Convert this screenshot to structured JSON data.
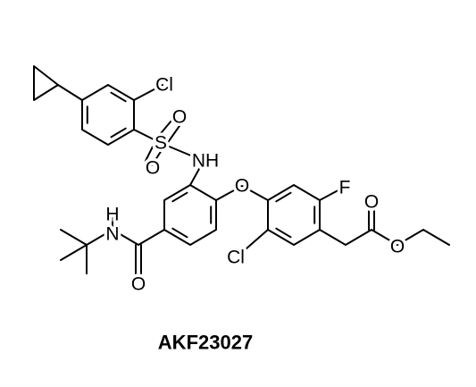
{
  "atoms": [
    "Cl",
    "S",
    "O",
    "O",
    "NH",
    "O",
    "F",
    "Cl",
    "H",
    "N",
    "O",
    "O",
    "O"
  ],
  "title": "AKF23027"
}
